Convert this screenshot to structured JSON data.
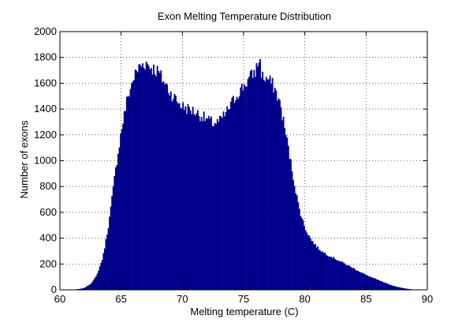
{
  "chart_data": {
    "type": "bar",
    "title": "Exon Melting Temperature Distribution",
    "xlabel": "Melting temperature (C)",
    "ylabel": "Number of exons",
    "xlim": [
      60,
      90
    ],
    "ylim": [
      0,
      2000
    ],
    "xticks": [
      "60",
      "65",
      "70",
      "75",
      "80",
      "85",
      "90"
    ],
    "yticks": [
      "0",
      "200",
      "400",
      "600",
      "800",
      "1000",
      "1200",
      "1400",
      "1600",
      "1800",
      "2000"
    ],
    "grid": true,
    "bin_width": 0.1,
    "bar_color": "#00008b",
    "series": [
      {
        "x": [
          61.0,
          61.5,
          62.0,
          62.5,
          63.0,
          63.5,
          64.0,
          64.5,
          65.0,
          65.5,
          66.0,
          66.5,
          67.0,
          67.5,
          68.0,
          68.5,
          69.0,
          69.5,
          70.0,
          70.5,
          71.0,
          71.5,
          72.0,
          72.5,
          73.0,
          73.5,
          74.0,
          74.5,
          75.0,
          75.5,
          76.0,
          76.3,
          76.5,
          77.0,
          77.5,
          78.0,
          78.5,
          79.0,
          79.5,
          80.0,
          80.5,
          81.0,
          81.5,
          82.0,
          82.5,
          83.0,
          83.5,
          84.0,
          84.5,
          85.0,
          85.5,
          86.0,
          86.5,
          87.0,
          87.5,
          88.0,
          88.5,
          89.0
        ],
        "values": [
          2,
          5,
          15,
          45,
          110,
          250,
          520,
          900,
          1230,
          1480,
          1640,
          1730,
          1760,
          1720,
          1690,
          1610,
          1530,
          1470,
          1420,
          1400,
          1380,
          1350,
          1320,
          1290,
          1300,
          1360,
          1440,
          1520,
          1580,
          1640,
          1700,
          1800,
          1650,
          1630,
          1570,
          1430,
          1180,
          900,
          640,
          480,
          390,
          330,
          290,
          265,
          240,
          215,
          190,
          165,
          140,
          115,
          95,
          75,
          55,
          38,
          24,
          14,
          6,
          2
        ]
      }
    ]
  }
}
